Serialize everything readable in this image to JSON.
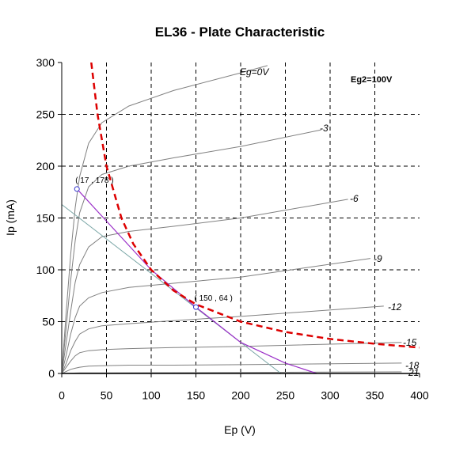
{
  "chart_data": {
    "type": "line",
    "title": "EL36 - Plate Characteristic",
    "xlabel": "Ep (V)",
    "ylabel": "Ip (mA)",
    "xlim": [
      0,
      400
    ],
    "ylim": [
      0,
      300
    ],
    "xticks": [
      "0",
      "50",
      "100",
      "150",
      "200",
      "250",
      "300",
      "350",
      "400"
    ],
    "yticks": [
      "0",
      "50",
      "100",
      "150",
      "200",
      "250",
      "300"
    ],
    "grid": true,
    "annotation": "Eg2=100V",
    "colors": {
      "curves": "#808080",
      "max_dissipation": "#dd0000",
      "load_line_1": "#7aa6a6",
      "load_line_2": "#9b30c8",
      "point_marker": "#3333cc",
      "axis": "#000000"
    },
    "series": [
      {
        "name": "Eg=0V",
        "label": "Eg=0V",
        "points": [
          [
            0,
            0
          ],
          [
            5,
            60
          ],
          [
            10,
            115
          ],
          [
            15,
            160
          ],
          [
            20,
            190
          ],
          [
            30,
            222
          ],
          [
            45,
            242
          ],
          [
            75,
            258
          ],
          [
            125,
            273
          ],
          [
            200,
            290
          ],
          [
            230,
            297
          ]
        ]
      },
      {
        "name": "-3",
        "label": "-3",
        "points": [
          [
            0,
            0
          ],
          [
            5,
            45
          ],
          [
            10,
            90
          ],
          [
            15,
            128
          ],
          [
            20,
            155
          ],
          [
            30,
            180
          ],
          [
            45,
            192
          ],
          [
            75,
            200
          ],
          [
            125,
            208
          ],
          [
            200,
            219
          ],
          [
            290,
            235
          ]
        ]
      },
      {
        "name": "-6",
        "label": "-6",
        "points": [
          [
            0,
            0
          ],
          [
            5,
            30
          ],
          [
            10,
            60
          ],
          [
            15,
            88
          ],
          [
            20,
            105
          ],
          [
            30,
            122
          ],
          [
            45,
            132
          ],
          [
            75,
            137
          ],
          [
            125,
            142
          ],
          [
            200,
            150
          ],
          [
            320,
            168
          ]
        ]
      },
      {
        "name": "-9",
        "label": "-9",
        "points": [
          [
            0,
            0
          ],
          [
            5,
            18
          ],
          [
            10,
            38
          ],
          [
            15,
            54
          ],
          [
            20,
            65
          ],
          [
            30,
            73
          ],
          [
            45,
            78
          ],
          [
            75,
            83
          ],
          [
            125,
            87
          ],
          [
            200,
            93
          ],
          [
            345,
            111
          ]
        ]
      },
      {
        "name": "-12",
        "label": "-12",
        "points": [
          [
            0,
            0
          ],
          [
            5,
            10
          ],
          [
            10,
            22
          ],
          [
            15,
            31
          ],
          [
            20,
            38
          ],
          [
            30,
            43
          ],
          [
            45,
            46
          ],
          [
            75,
            48
          ],
          [
            125,
            51
          ],
          [
            200,
            55
          ],
          [
            360,
            65
          ]
        ]
      },
      {
        "name": "-15",
        "label": "-15",
        "points": [
          [
            0,
            0
          ],
          [
            5,
            6
          ],
          [
            10,
            12
          ],
          [
            15,
            17
          ],
          [
            20,
            20
          ],
          [
            30,
            22
          ],
          [
            45,
            23
          ],
          [
            75,
            24
          ],
          [
            125,
            25
          ],
          [
            200,
            26
          ],
          [
            380,
            30
          ]
        ]
      },
      {
        "name": "-18",
        "label": "-18",
        "points": [
          [
            0,
            0
          ],
          [
            5,
            2
          ],
          [
            10,
            4
          ],
          [
            15,
            5
          ],
          [
            20,
            6
          ],
          [
            30,
            7
          ],
          [
            45,
            7.5
          ],
          [
            75,
            8
          ],
          [
            125,
            8
          ],
          [
            200,
            8.5
          ],
          [
            380,
            10
          ]
        ]
      },
      {
        "name": "-21",
        "label": "-21",
        "points": [
          [
            0,
            0
          ],
          [
            20,
            0.5
          ],
          [
            200,
            1
          ],
          [
            380,
            1.5
          ]
        ]
      }
    ],
    "max_dissipation_curve": {
      "points": [
        [
          33,
          300
        ],
        [
          40,
          250
        ],
        [
          50,
          200
        ],
        [
          66.7,
          150
        ],
        [
          80,
          125
        ],
        [
          100,
          100
        ],
        [
          125,
          80
        ],
        [
          150,
          66.7
        ],
        [
          200,
          50
        ],
        [
          250,
          40
        ],
        [
          300,
          33.3
        ],
        [
          350,
          28.6
        ],
        [
          400,
          25
        ]
      ]
    },
    "load_lines": [
      {
        "points": [
          [
            0,
            163
          ],
          [
            245,
            0
          ]
        ]
      },
      {
        "points": [
          [
            17,
            178
          ],
          [
            100,
            100
          ],
          [
            150,
            64
          ],
          [
            200,
            30
          ],
          [
            250,
            10
          ],
          [
            285,
            0
          ]
        ]
      }
    ],
    "operating_points": [
      {
        "x": 17,
        "y": 178,
        "label": "( 17 , 178 )"
      },
      {
        "x": 150,
        "y": 64,
        "label": "( 150 , 64 )"
      }
    ]
  }
}
